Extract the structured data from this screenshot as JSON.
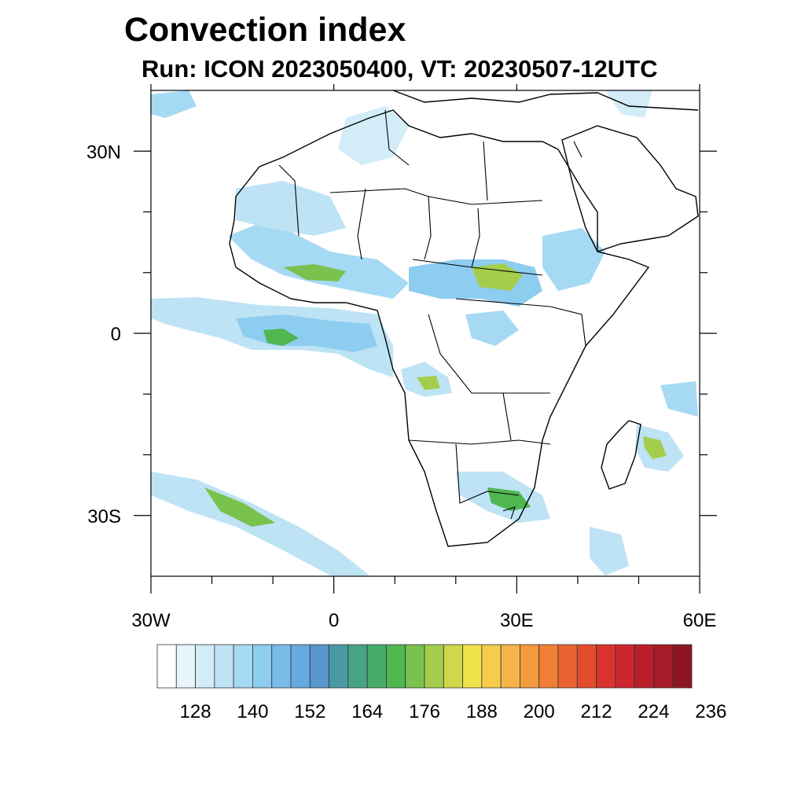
{
  "title": "Convection index",
  "subtitle": "Run: ICON 2023050400,  VT: 20230507-12UTC",
  "map": {
    "lon_range": [
      -30,
      60
    ],
    "lat_range": [
      -40,
      40
    ],
    "x_ticks": [
      {
        "value": -30,
        "label": "30W"
      },
      {
        "value": 0,
        "label": "0"
      },
      {
        "value": 30,
        "label": "30E"
      },
      {
        "value": 60,
        "label": "60E"
      }
    ],
    "y_ticks": [
      {
        "value": 30,
        "label": "30N"
      },
      {
        "value": 0,
        "label": "0"
      },
      {
        "value": -30,
        "label": "30S"
      }
    ],
    "minor_x_ticks": [
      -20,
      -10,
      10,
      20,
      40,
      50
    ],
    "minor_y_ticks": [
      20,
      10,
      -10,
      -20
    ]
  },
  "colorbar": {
    "levels": [
      128,
      140,
      152,
      164,
      176,
      188,
      200,
      212,
      224,
      236
    ],
    "colors": [
      "#ffffff",
      "#e8f4fb",
      "#d2ecf8",
      "#bde3f5",
      "#a6d9f3",
      "#8dcdef",
      "#79bce8",
      "#67aadf",
      "#5896cf",
      "#4a9aa6",
      "#46a486",
      "#47ac68",
      "#4fb650",
      "#79c24d",
      "#a5cd4d",
      "#cfd84a",
      "#f0e24a",
      "#f7cc4d",
      "#f6b44a",
      "#f49a3f",
      "#f07e35",
      "#ea6330",
      "#e34b2d",
      "#d9332e",
      "#cc2530",
      "#bb1f2c",
      "#a51b27",
      "#8e1620"
    ]
  }
}
